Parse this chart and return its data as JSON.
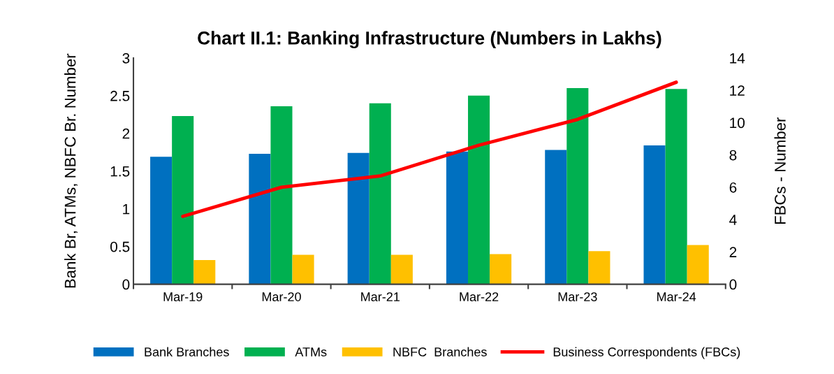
{
  "chart_data": {
    "type": "bar",
    "title": "Chart II.1: Banking Infrastructure (Numbers in Lakhs)",
    "ylabel": "Bank Br, ATMs, NBFC Br. Number",
    "y2label": "FBCs - Number",
    "categories": [
      "Mar-19",
      "Mar-20",
      "Mar-21",
      "Mar-22",
      "Mar-23",
      "Mar-24"
    ],
    "series": [
      {
        "name": "Bank Branches",
        "color": "#0070c0",
        "values": [
          1.69,
          1.73,
          1.74,
          1.76,
          1.78,
          1.84
        ]
      },
      {
        "name": "ATMs",
        "color": "#00b050",
        "values": [
          2.23,
          2.36,
          2.4,
          2.5,
          2.6,
          2.59
        ]
      },
      {
        "name": "NBFC  Branches",
        "color": "#ffc000",
        "values": [
          0.32,
          0.39,
          0.39,
          0.4,
          0.44,
          0.52
        ]
      },
      {
        "name": "Business Correspondents (FBCs)",
        "color": "#ff0000",
        "type": "line",
        "axis": "y2",
        "values": [
          4.2,
          6.0,
          6.7,
          8.6,
          10.2,
          12.5
        ]
      }
    ],
    "ylim": [
      0,
      3
    ],
    "yticks": [
      0,
      0.5,
      1,
      1.5,
      2,
      2.5,
      3
    ],
    "y2lim": [
      0,
      14
    ],
    "y2ticks": [
      0,
      2,
      4,
      6,
      8,
      10,
      12,
      14
    ],
    "grid": false,
    "legend": "bottom",
    "marker": "none",
    "line_style": "solid"
  }
}
